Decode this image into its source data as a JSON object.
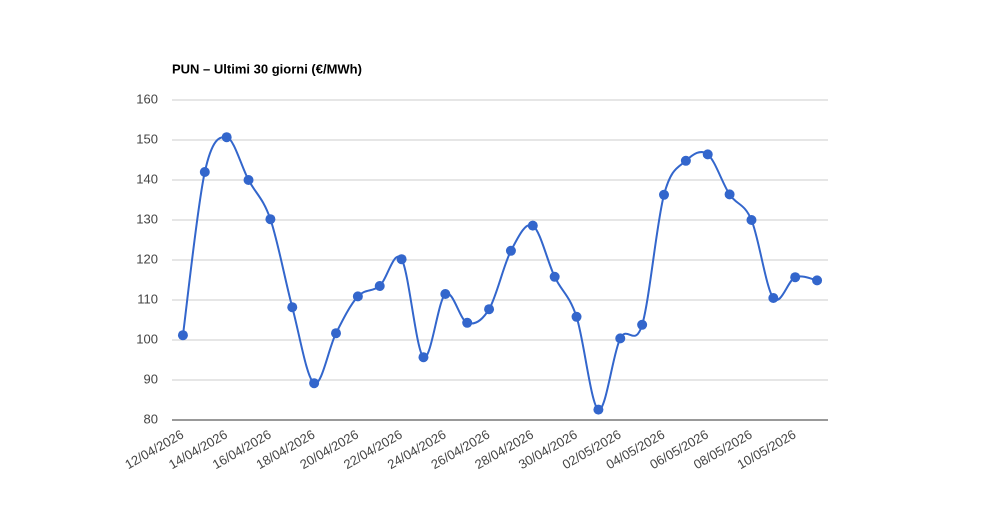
{
  "chart_data": {
    "type": "line",
    "title": "PUN – Ultimi 30 giorni (€/MWh)",
    "categories": [
      "12/04/2026",
      null,
      "14/04/2026",
      null,
      "16/04/2026",
      null,
      "18/04/2026",
      null,
      "20/04/2026",
      null,
      "22/04/2026",
      null,
      "24/04/2026",
      null,
      "26/04/2026",
      null,
      "28/04/2026",
      null,
      "30/04/2026",
      null,
      "02/05/2026",
      null,
      "04/05/2026",
      null,
      "06/05/2026",
      null,
      "08/05/2026",
      null,
      "10/05/2026",
      null
    ],
    "series": [
      {
        "color": "#3366cc",
        "values": [
          101.2,
          142,
          150.7,
          140,
          130.2,
          108.2,
          89.2,
          101.7,
          110.9,
          113.5,
          120.2,
          95.7,
          111.5,
          104.3,
          107.7,
          122.3,
          128.6,
          115.8,
          105.8,
          82.6,
          100.4,
          103.8,
          136.3,
          144.8,
          146.4,
          136.4,
          130,
          110.5,
          115.7,
          114.9
        ]
      }
    ],
    "ylim": [
      80,
      160
    ],
    "yticks": [
      80,
      90,
      100,
      110,
      120,
      130,
      140,
      150,
      160
    ],
    "grid": true
  }
}
